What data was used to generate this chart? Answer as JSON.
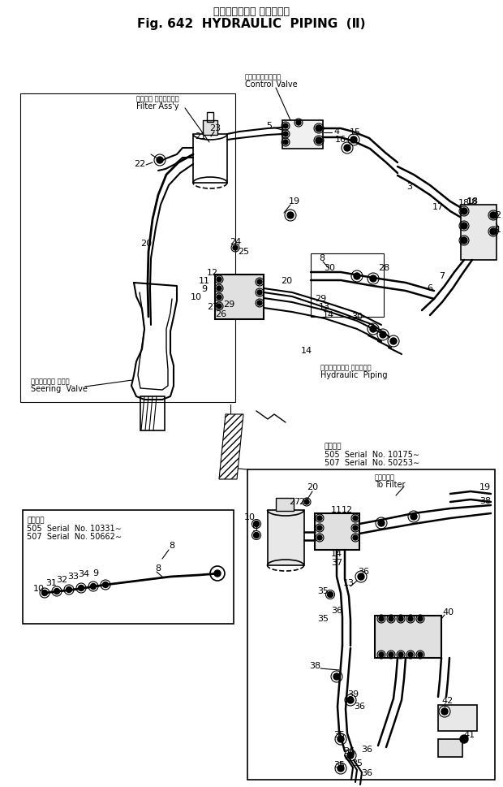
{
  "title_jp": "ハイドロリック パイピング",
  "title_en": "Fig. 642  HYDRAULIC  PIPING  (Ⅱ)",
  "bg_color": "#ffffff",
  "line_color": "#000000",
  "labels": {
    "filter_assy_jp": "フィルタ アッセンブリ",
    "filter_assy_en": "Filter Ass'y",
    "control_valve_jp": "コントロールバルブ",
    "control_valve_en": "Control Valve",
    "steering_valve_jp": "ステアリング バルブ",
    "steering_valve_en": "Seering  Valve",
    "hydraulic_piping_jp": "ハイドロリック パイピング",
    "hydraulic_piping_en": "Hydraulic  Piping",
    "serial_top_jp": "適用号機",
    "serial_505_top": "505  Serial  No. 10175∼",
    "serial_507_top": "507  Serial  No. 50253∼",
    "to_filter_jp": "フィルタへ",
    "to_filter_en": "To Filter",
    "serial_bottom_jp": "適用号機",
    "serial_505_bottom": "505  Serial  No. 10331∼",
    "serial_507_bottom": "507  Serial  No. 50662∼"
  }
}
